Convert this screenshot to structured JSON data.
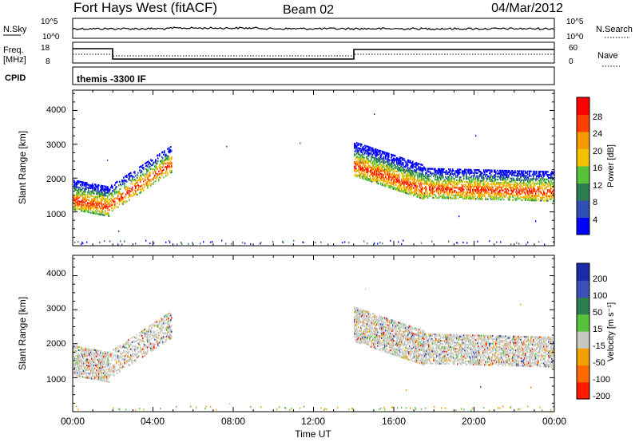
{
  "header": {
    "station": "Fort Hays West (fitACF)",
    "beam": "Beam 02",
    "date": "04/Mar/2012"
  },
  "panels": {
    "nsky_label": "N.Sky",
    "nsearch_label": "N.Search",
    "freq_label_1": "Freq.",
    "freq_label_2": "[MHz]",
    "nave_label": "Nave",
    "cpid_label": "CPID",
    "cpid_text": "themis -3300 IF",
    "noise_ticks": [
      "10^5",
      "10^0"
    ],
    "noise_ticks_right": [
      "10^5",
      "10^0"
    ],
    "freq_ticks": [
      "18",
      "8"
    ],
    "nave_ticks": [
      "60",
      "0"
    ]
  },
  "power_scale": {
    "label": "Power [dB]",
    "ticks": [
      "28",
      "24",
      "20",
      "16",
      "12",
      "8",
      "4"
    ]
  },
  "velocity_scale": {
    "label": "Velocity [m s⁻¹]",
    "ticks": [
      "200",
      "100",
      "50",
      "15",
      "-15",
      "-50",
      "-100",
      "-200"
    ]
  },
  "colors": {
    "power": [
      "#0000ff",
      "#2f4fb5",
      "#2e7d4f",
      "#55c23a",
      "#f2c200",
      "#f59a00",
      "#ff4000",
      "#ff0000"
    ],
    "velocity": [
      "#1b2aa8",
      "#3d50b8",
      "#2e7d4f",
      "#55c23a",
      "#c8c8c2",
      "#f2a000",
      "#ff6a00",
      "#ff1a00"
    ]
  },
  "chart_data": [
    {
      "type": "heatmap",
      "title": "",
      "xlabel": "",
      "ylabel": "Slant Range [km]",
      "xlim": [
        "00:00",
        "24:00"
      ],
      "ylim": [
        0,
        4600
      ],
      "xticks": [
        "00:00",
        "04:00",
        "08:00",
        "12:00",
        "16:00",
        "20:00",
        "00:00"
      ],
      "yticks": [
        "1000",
        "2000",
        "3000",
        "4000"
      ],
      "colorbar": "Power [dB]",
      "colorbar_ticks": [
        28,
        24,
        20,
        16,
        12,
        8,
        4
      ]
    },
    {
      "type": "heatmap",
      "title": "",
      "xlabel": "Time UT",
      "ylabel": "Slant Range [km]",
      "xlim": [
        "00:00",
        "24:00"
      ],
      "ylim": [
        0,
        4600
      ],
      "xticks": [
        "00:00",
        "04:00",
        "08:00",
        "12:00",
        "16:00",
        "20:00",
        "00:00"
      ],
      "yticks": [
        "1000",
        "2000",
        "3000",
        "4000"
      ],
      "colorbar": "Velocity [m s⁻¹]",
      "colorbar_ticks": [
        200,
        100,
        50,
        15,
        -15,
        -50,
        -100,
        -200
      ]
    }
  ]
}
